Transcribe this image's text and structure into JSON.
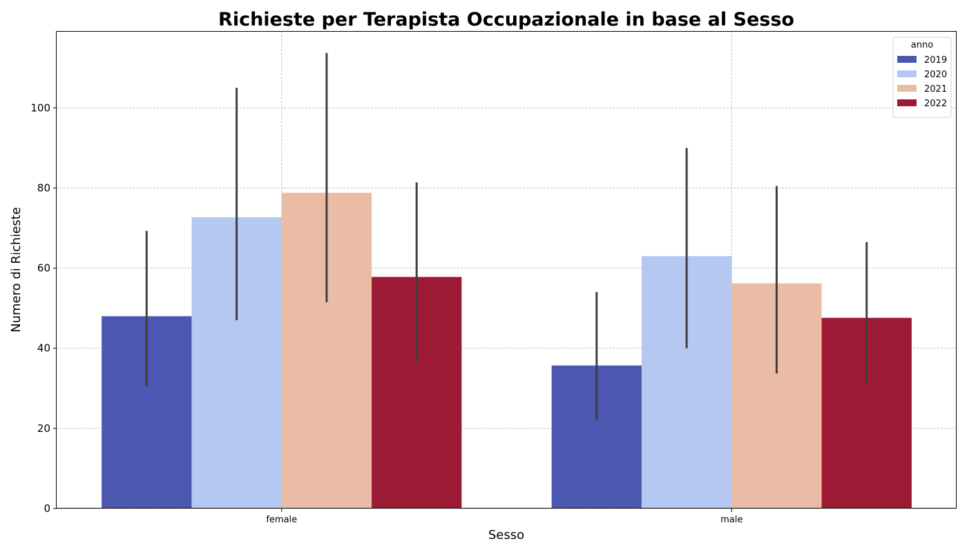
{
  "chart_data": {
    "type": "bar",
    "title": "Richieste per Terapista Occupazionale in base al Sesso",
    "xlabel": "Sesso",
    "ylabel": "Numero di Richieste",
    "categories": [
      "female",
      "male"
    ],
    "ylim": [
      0,
      119
    ],
    "yticks": [
      0,
      20,
      40,
      60,
      80,
      100
    ],
    "grid": true,
    "legend": {
      "title": "anno",
      "position": "top-right"
    },
    "series": [
      {
        "name": "2019",
        "color": "#4b57b0",
        "values": [
          48,
          35.7
        ],
        "err_low": [
          30.5,
          22
        ],
        "err_high": [
          69.3,
          54
        ]
      },
      {
        "name": "2020",
        "color": "#b4c8f2",
        "values": [
          72.7,
          63
        ],
        "err_low": [
          47,
          40
        ],
        "err_high": [
          105,
          90
        ]
      },
      {
        "name": "2021",
        "color": "#eabca6",
        "values": [
          78.8,
          56.2
        ],
        "err_low": [
          51.5,
          33.7
        ],
        "err_high": [
          113.7,
          80.5
        ]
      },
      {
        "name": "2022",
        "color": "#9d1a34",
        "values": [
          57.8,
          47.6
        ],
        "err_low": [
          36.5,
          31
        ],
        "err_high": [
          81.4,
          66.5
        ]
      }
    ]
  }
}
